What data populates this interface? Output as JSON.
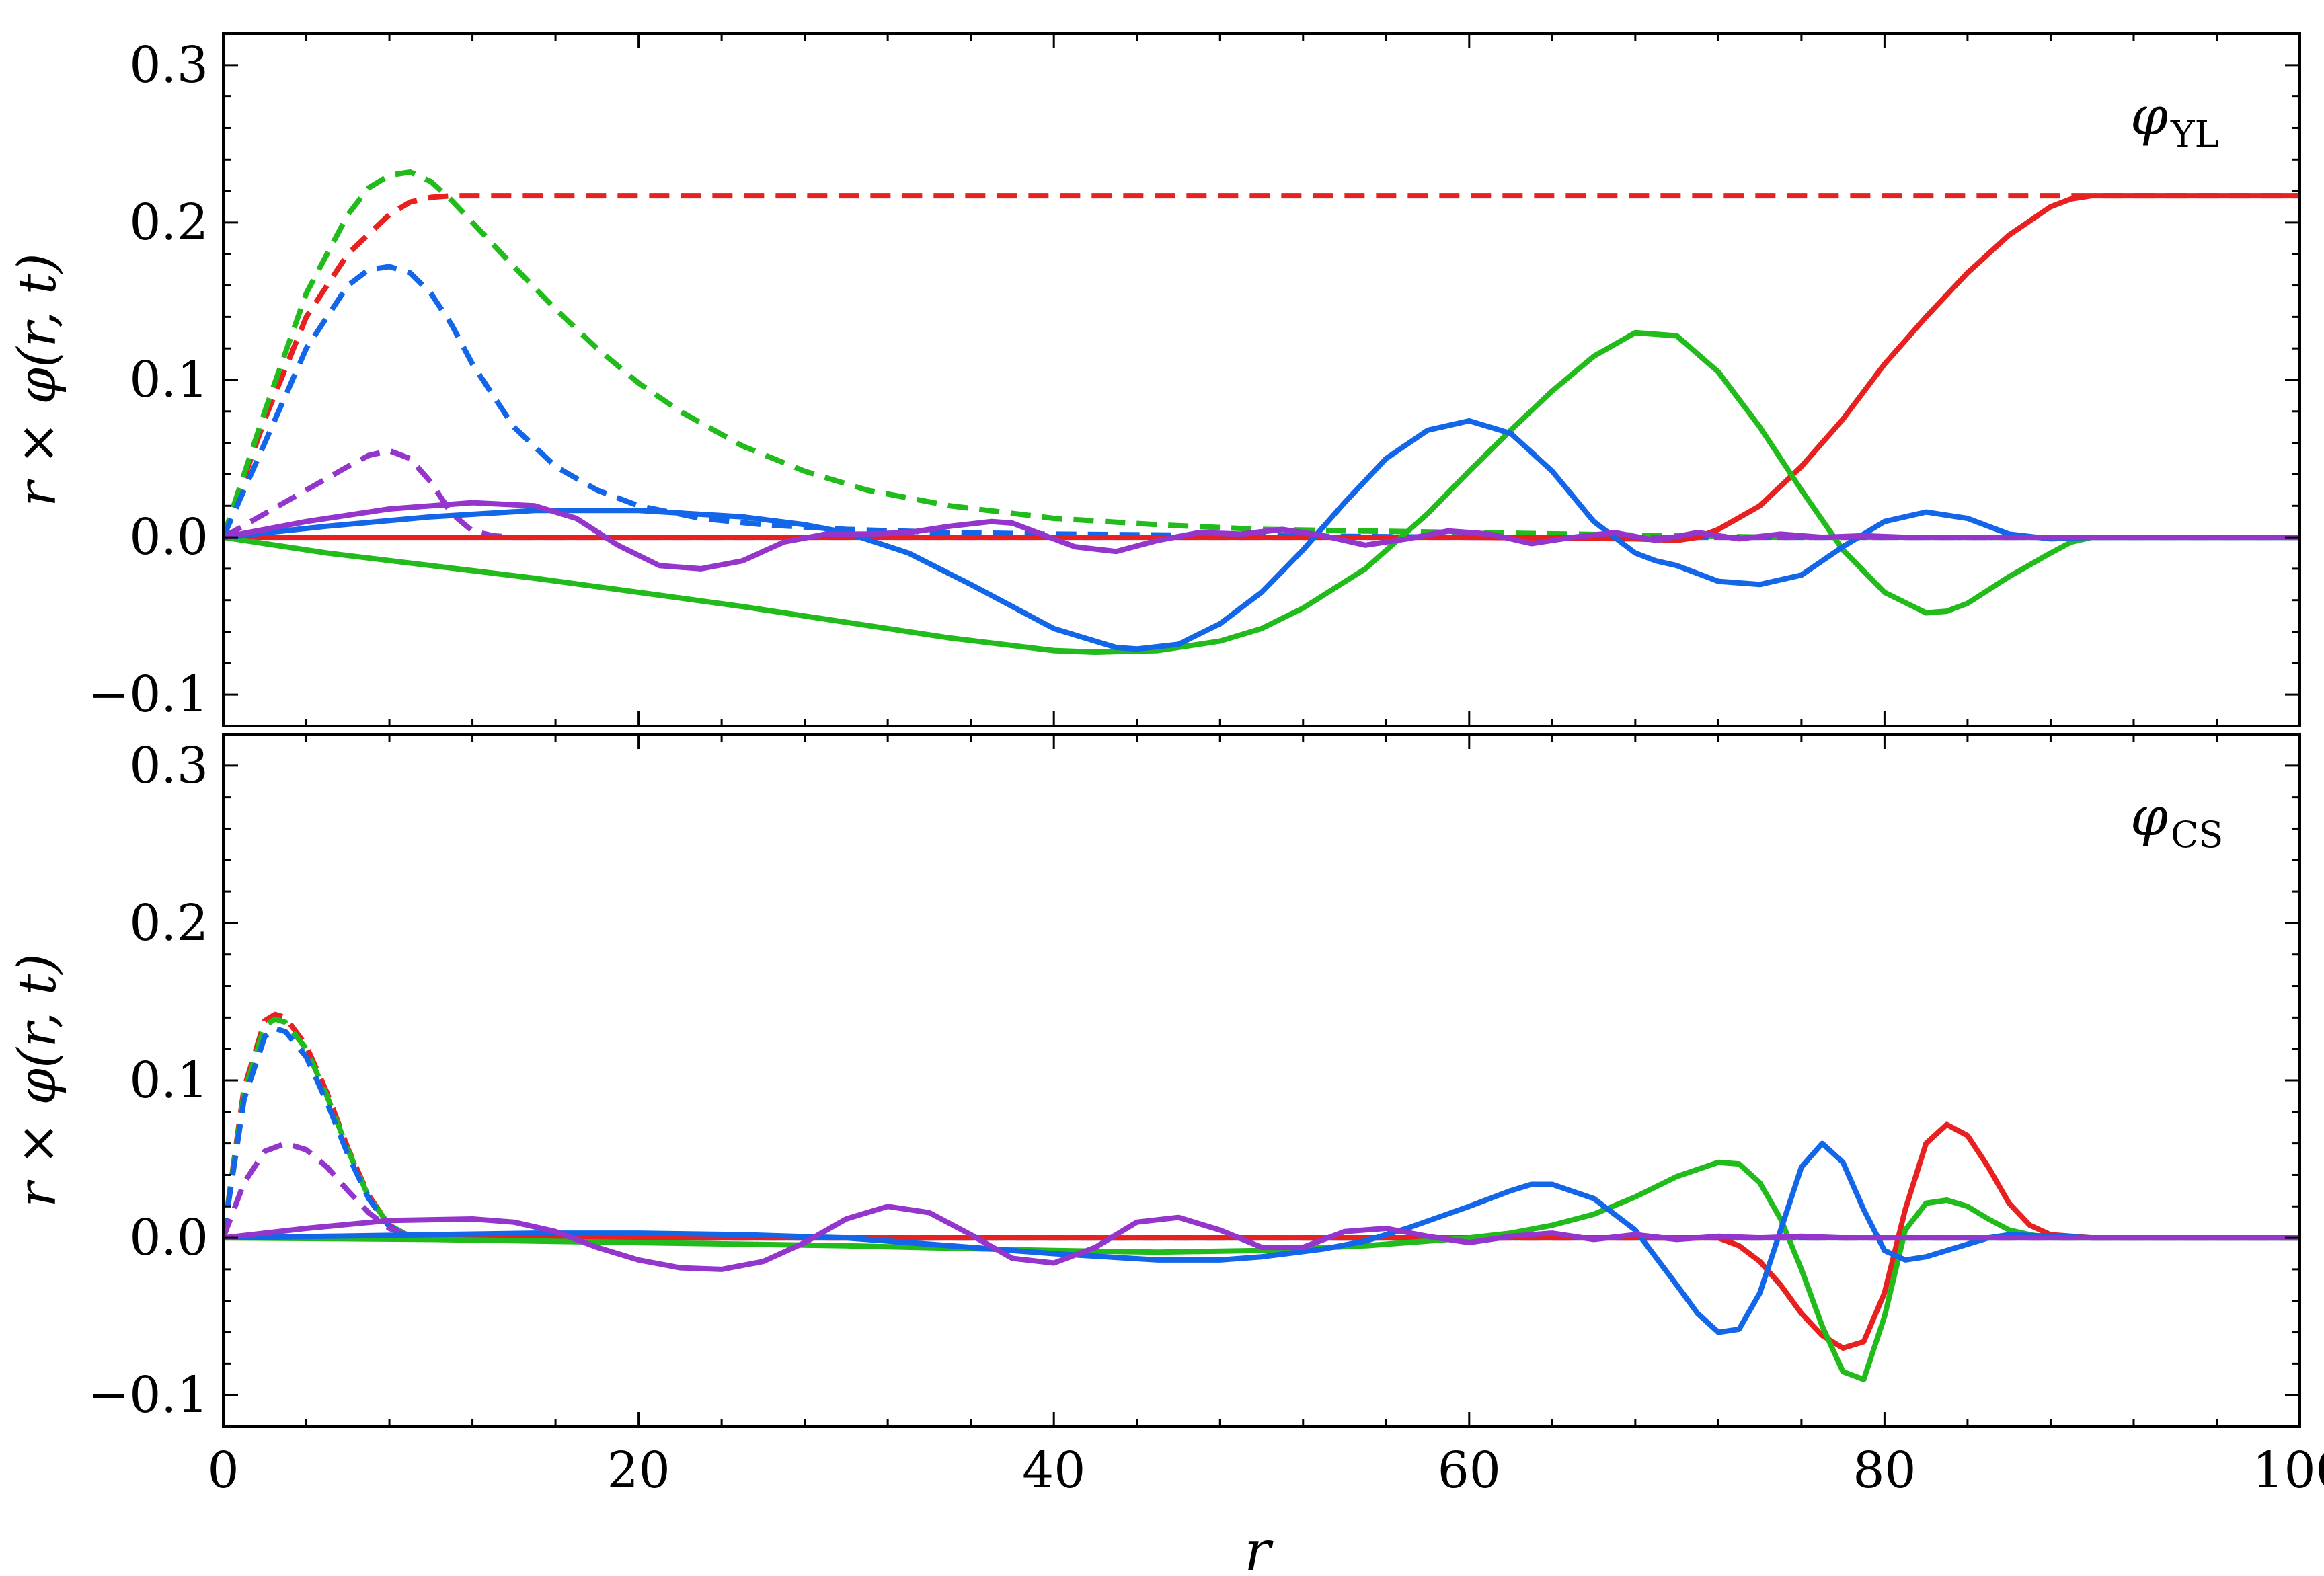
{
  "chart_data": [
    {
      "type": "line",
      "panel": "top",
      "annotation": {
        "main": "φ",
        "sub": "YL"
      },
      "ylabel": "r × φ(r, t)",
      "xlabel": "",
      "xlim": [
        0,
        100
      ],
      "ylim": [
        -0.12,
        0.32
      ],
      "y_ticks": [
        -0.1,
        0.0,
        0.1,
        0.2,
        0.3
      ],
      "y_tick_labels": [
        "−0.1",
        "0.0",
        "0.1",
        "0.2",
        "0.3"
      ],
      "x_ticks": [
        0,
        20,
        40,
        60,
        80,
        100
      ],
      "series": [
        {
          "color": "#e6211f",
          "style": "dashed",
          "x": [
            0,
            2,
            4,
            6,
            8,
            9,
            10,
            11,
            12,
            20,
            40,
            60,
            80,
            88,
            100
          ],
          "y": [
            0,
            0.075,
            0.14,
            0.18,
            0.205,
            0.213,
            0.216,
            0.217,
            0.217,
            0.217,
            0.217,
            0.217,
            0.217,
            0.217,
            0.217
          ]
        },
        {
          "color": "#22bb1c",
          "style": "dashed",
          "x": [
            0,
            2,
            4,
            6,
            7,
            8,
            9,
            10,
            11,
            12,
            14,
            16,
            18,
            20,
            22,
            25,
            28,
            31,
            35,
            40,
            45,
            50,
            55,
            60,
            65,
            70,
            75,
            80,
            90,
            100
          ],
          "y": [
            0,
            0.08,
            0.155,
            0.205,
            0.222,
            0.23,
            0.232,
            0.226,
            0.214,
            0.2,
            0.172,
            0.145,
            0.12,
            0.098,
            0.08,
            0.058,
            0.042,
            0.03,
            0.02,
            0.012,
            0.008,
            0.005,
            0.004,
            0.003,
            0.002,
            0.001,
            0,
            0,
            0,
            0
          ]
        },
        {
          "color": "#1366e8",
          "style": "dashed",
          "x": [
            0,
            2,
            4,
            6,
            7,
            8,
            9,
            10,
            11,
            12,
            14,
            16,
            18,
            20,
            23,
            26,
            30,
            35,
            40,
            50,
            60,
            70,
            80,
            90,
            100
          ],
          "y": [
            0,
            0.06,
            0.12,
            0.16,
            0.17,
            0.172,
            0.168,
            0.155,
            0.135,
            0.11,
            0.07,
            0.045,
            0.03,
            0.02,
            0.012,
            0.008,
            0.005,
            0.003,
            0.002,
            0.001,
            0,
            0,
            0,
            0,
            0
          ]
        },
        {
          "color": "#9435cc",
          "style": "dashed",
          "x": [
            0,
            2,
            4,
            6,
            7,
            8,
            9,
            10,
            11,
            12,
            13,
            14,
            16,
            20,
            30,
            40,
            50,
            60,
            70,
            80,
            90,
            100
          ],
          "y": [
            0,
            0.015,
            0.03,
            0.045,
            0.052,
            0.055,
            0.05,
            0.035,
            0.015,
            0.004,
            0.001,
            0,
            0,
            0,
            0,
            0,
            0,
            0,
            0,
            0,
            0,
            0
          ]
        },
        {
          "color": "#e6211f",
          "style": "solid",
          "x": [
            0,
            10,
            20,
            30,
            40,
            50,
            60,
            68,
            70,
            71,
            72,
            74,
            76,
            78,
            80,
            82,
            84,
            86,
            88,
            89,
            90,
            100
          ],
          "y": [
            0,
            0,
            0,
            0,
            0,
            0,
            0,
            -0.001,
            -0.002,
            0,
            0.005,
            0.02,
            0.045,
            0.075,
            0.11,
            0.14,
            0.168,
            0.192,
            0.21,
            0.215,
            0.217,
            0.217
          ]
        },
        {
          "color": "#22bb1c",
          "style": "solid",
          "x": [
            0,
            5,
            10,
            15,
            20,
            25,
            30,
            35,
            40,
            42,
            45,
            48,
            50,
            52,
            55,
            58,
            60,
            62,
            64,
            66,
            68,
            70,
            72,
            74,
            76,
            78,
            80,
            82,
            83,
            84,
            86,
            88,
            89,
            90,
            92,
            100
          ],
          "y": [
            0,
            -0.01,
            -0.018,
            -0.026,
            -0.035,
            -0.044,
            -0.054,
            -0.064,
            -0.072,
            -0.073,
            -0.072,
            -0.066,
            -0.058,
            -0.045,
            -0.02,
            0.015,
            0.042,
            0.068,
            0.093,
            0.115,
            0.13,
            0.128,
            0.105,
            0.07,
            0.03,
            -0.008,
            -0.035,
            -0.048,
            -0.047,
            -0.042,
            -0.025,
            -0.01,
            -0.003,
            0,
            0,
            0
          ]
        },
        {
          "color": "#1366e8",
          "style": "solid",
          "x": [
            0,
            5,
            10,
            15,
            20,
            25,
            28,
            30,
            33,
            36,
            40,
            43,
            44,
            46,
            48,
            50,
            52,
            54,
            56,
            58,
            60,
            62,
            64,
            66,
            68,
            69,
            70,
            72,
            74,
            76,
            78,
            80,
            82,
            84,
            86,
            88,
            90,
            100
          ],
          "y": [
            0,
            0.007,
            0.013,
            0.017,
            0.017,
            0.013,
            0.008,
            0.003,
            -0.01,
            -0.03,
            -0.058,
            -0.07,
            -0.071,
            -0.068,
            -0.055,
            -0.035,
            -0.008,
            0.022,
            0.05,
            0.068,
            0.074,
            0.066,
            0.042,
            0.01,
            -0.01,
            -0.015,
            -0.018,
            -0.028,
            -0.03,
            -0.024,
            -0.006,
            0.01,
            0.016,
            0.012,
            0.002,
            -0.001,
            0,
            0
          ]
        },
        {
          "color": "#9435cc",
          "style": "solid",
          "x": [
            0,
            4,
            8,
            12,
            15,
            17,
            19,
            21,
            23,
            25,
            27,
            29,
            31,
            33,
            35,
            37,
            38,
            39,
            41,
            43,
            45,
            47,
            49,
            51,
            53,
            55,
            57,
            59,
            61,
            63,
            65,
            67,
            69,
            71,
            73,
            75,
            77,
            79,
            81,
            85,
            90,
            100
          ],
          "y": [
            0,
            0.01,
            0.018,
            0.022,
            0.02,
            0.012,
            -0.005,
            -0.018,
            -0.02,
            -0.015,
            -0.003,
            0.002,
            0.002,
            0.003,
            0.007,
            0.01,
            0.009,
            0.004,
            -0.006,
            -0.009,
            -0.002,
            0.003,
            0.002,
            0.005,
            0.001,
            -0.005,
            -0.001,
            0.004,
            0.002,
            -0.004,
            0,
            0.003,
            -0.002,
            0.003,
            -0.001,
            0.002,
            0,
            0.001,
            0,
            0,
            0,
            0
          ]
        }
      ]
    },
    {
      "type": "line",
      "panel": "bottom",
      "annotation": {
        "main": "φ",
        "sub": "CS"
      },
      "ylabel": "r × φ(r, t)",
      "xlabel": "r",
      "xlim": [
        0,
        100
      ],
      "ylim": [
        -0.12,
        0.32
      ],
      "y_ticks": [
        -0.1,
        0.0,
        0.1,
        0.2,
        0.3
      ],
      "y_tick_labels": [
        "−0.1",
        "0.0",
        "0.1",
        "0.2",
        "0.3"
      ],
      "x_ticks": [
        0,
        20,
        40,
        60,
        80,
        100
      ],
      "x_tick_labels": [
        "0",
        "20",
        "40",
        "60",
        "80",
        "100"
      ],
      "series": [
        {
          "color": "#e6211f",
          "style": "dashed",
          "x": [
            0,
            1,
            2,
            2.5,
            3,
            4,
            5,
            6,
            7,
            8,
            9,
            10,
            12,
            20,
            100
          ],
          "y": [
            0,
            0.095,
            0.138,
            0.142,
            0.14,
            0.122,
            0.092,
            0.057,
            0.027,
            0.008,
            0.001,
            0,
            0,
            0,
            0
          ]
        },
        {
          "color": "#22bb1c",
          "style": "dashed",
          "x": [
            0,
            1,
            2,
            2.5,
            3,
            4,
            5,
            6,
            7,
            8,
            9,
            10,
            12,
            20,
            100
          ],
          "y": [
            0,
            0.092,
            0.135,
            0.139,
            0.137,
            0.12,
            0.09,
            0.056,
            0.026,
            0.008,
            0.001,
            0,
            0,
            0,
            0
          ]
        },
        {
          "color": "#1366e8",
          "style": "dashed",
          "x": [
            0,
            1,
            2,
            2.5,
            3,
            4,
            5,
            6,
            7,
            8,
            9,
            10,
            12,
            20,
            100
          ],
          "y": [
            0,
            0.088,
            0.128,
            0.133,
            0.131,
            0.115,
            0.086,
            0.053,
            0.025,
            0.007,
            0.001,
            0,
            0,
            0,
            0
          ]
        },
        {
          "color": "#9435cc",
          "style": "dashed",
          "x": [
            0,
            1,
            2,
            3,
            4,
            5,
            6,
            7,
            8,
            9,
            10,
            20,
            100
          ],
          "y": [
            0,
            0.035,
            0.055,
            0.06,
            0.056,
            0.045,
            0.03,
            0.016,
            0.006,
            0.001,
            0,
            0,
            0
          ]
        },
        {
          "color": "#e6211f",
          "style": "solid",
          "x": [
            0,
            20,
            40,
            50,
            55,
            60,
            64,
            66,
            68,
            70,
            71,
            72,
            73,
            74,
            75,
            76,
            77,
            78,
            79,
            80,
            81,
            82,
            83,
            84,
            85,
            86,
            87,
            88,
            90,
            100
          ],
          "y": [
            0,
            0,
            0,
            0,
            0,
            0,
            0,
            0,
            0,
            0,
            0,
            0,
            -0.005,
            -0.015,
            -0.03,
            -0.048,
            -0.062,
            -0.07,
            -0.066,
            -0.035,
            0.018,
            0.06,
            0.072,
            0.065,
            0.045,
            0.022,
            0.008,
            0.002,
            0,
            0
          ]
        },
        {
          "color": "#22bb1c",
          "style": "solid",
          "x": [
            0,
            10,
            20,
            30,
            40,
            45,
            50,
            55,
            60,
            62,
            64,
            66,
            68,
            70,
            72,
            73,
            74,
            75,
            76,
            77,
            78,
            79,
            80,
            81,
            82,
            83,
            84,
            85,
            86,
            87,
            88,
            90,
            100
          ],
          "y": [
            0,
            -0.001,
            -0.003,
            -0.005,
            -0.008,
            -0.009,
            -0.008,
            -0.005,
            0,
            0.003,
            0.008,
            0.015,
            0.026,
            0.039,
            0.048,
            0.047,
            0.035,
            0.012,
            -0.02,
            -0.056,
            -0.085,
            -0.09,
            -0.05,
            0.005,
            0.022,
            0.024,
            0.02,
            0.012,
            0.005,
            0.002,
            0,
            0,
            0
          ]
        },
        {
          "color": "#1366e8",
          "style": "solid",
          "x": [
            0,
            5,
            10,
            15,
            20,
            25,
            30,
            35,
            40,
            45,
            48,
            50,
            53,
            55,
            57,
            60,
            62,
            63,
            64,
            66,
            68,
            70,
            71,
            72,
            73,
            74,
            75,
            76,
            77,
            78,
            79,
            80,
            81,
            82,
            83,
            84,
            85,
            86,
            88,
            90,
            100
          ],
          "y": [
            0,
            0.001,
            0.002,
            0.003,
            0.003,
            0.002,
            0,
            -0.005,
            -0.01,
            -0.014,
            -0.014,
            -0.012,
            -0.007,
            -0.002,
            0.006,
            0.02,
            0.03,
            0.034,
            0.034,
            0.025,
            0.005,
            -0.03,
            -0.048,
            -0.06,
            -0.058,
            -0.035,
            0.005,
            0.045,
            0.06,
            0.048,
            0.018,
            -0.008,
            -0.014,
            -0.012,
            -0.008,
            -0.004,
            0,
            0.002,
            0.001,
            0,
            0
          ]
        },
        {
          "color": "#9435cc",
          "style": "solid",
          "x": [
            0,
            4,
            8,
            12,
            14,
            16,
            18,
            20,
            22,
            24,
            26,
            28,
            30,
            32,
            34,
            36,
            38,
            40,
            42,
            44,
            46,
            48,
            50,
            52,
            54,
            56,
            58,
            60,
            62,
            64,
            66,
            68,
            70,
            72,
            74,
            76,
            78,
            80,
            85,
            90,
            100
          ],
          "y": [
            0,
            0.006,
            0.011,
            0.012,
            0.01,
            0.004,
            -0.006,
            -0.014,
            -0.019,
            -0.02,
            -0.015,
            -0.003,
            0.012,
            0.02,
            0.016,
            0.002,
            -0.013,
            -0.016,
            -0.006,
            0.01,
            0.013,
            0.005,
            -0.006,
            -0.006,
            0.004,
            0.006,
            0.001,
            -0.003,
            0.001,
            0.003,
            -0.001,
            0.002,
            -0.001,
            0.001,
            0,
            0.001,
            0,
            0,
            0,
            0,
            0
          ]
        }
      ]
    }
  ]
}
